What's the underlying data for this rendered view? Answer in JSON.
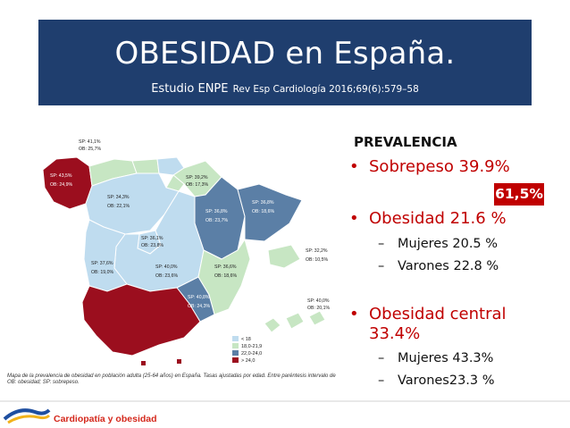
{
  "header": {
    "title": "OBESIDAD en España.",
    "subtitle_main": "Estudio ENPE",
    "subtitle_ref": "Rev Esp Cardiología  2016;69(6):579–58"
  },
  "colors": {
    "header_bg": "#1f3e6e",
    "accent_red": "#c00000",
    "map_light_blue": "#bfdcef",
    "map_steel_blue": "#5b7fa6",
    "map_light_green": "#c7e6c3",
    "map_dark_red": "#9b0e1e"
  },
  "map": {
    "region_labels": [
      {
        "sp": "SP: 41,1%",
        "ob": "OB: 25,7%"
      },
      {
        "sp": "SP: 43,5%",
        "ob": "OB: 24,9%"
      },
      {
        "sp": "SP: 34,3%",
        "ob": "OB: 22,1%"
      },
      {
        "sp": "SP: 39,2%",
        "ob": "OB: 17,3%"
      },
      {
        "sp": "SP: 36,8%",
        "ob": "OB: 23,7%"
      },
      {
        "sp": "SP: 36,8%",
        "ob": "OB: 18,6%"
      },
      {
        "sp": "SP: 36,1%",
        "ob": "OB: 23,8%"
      },
      {
        "sp": "SP: 37,6%",
        "ob": "OB: 19,0%"
      },
      {
        "sp": "SP: 40,0%",
        "ob": "OB: 23,6%"
      },
      {
        "sp": "SP: 36,6%",
        "ob": "OB: 18,6%"
      },
      {
        "sp": "SP: 32,2%",
        "ob": "OB: 10,5%"
      },
      {
        "sp": "SP: 40,8%",
        "ob": "OB: 24,3%"
      },
      {
        "sp": "SP: 40,0%",
        "ob": "OB: 20,1%"
      }
    ],
    "legend": [
      "< 18",
      "18,0-21,9",
      "22,0-24,0",
      "> 24,0"
    ],
    "caption_line1": "Mapa de la prevalencia de obesidad en población adulta (25-64 años) en España. Tasas ajustadas por edad. Entre paréntesis intervalo de",
    "caption_line2": "OB: obesidad; SP: sobrepeso."
  },
  "prevalence": {
    "heading": "PREVALENCIA",
    "badge": "61,5%",
    "items": [
      {
        "bullet": "•",
        "text": "Sobrepeso 39.9%"
      },
      {
        "bullet": "•",
        "text": "Obesidad 21.6 %"
      },
      {
        "bullet": "•",
        "text_line1": "Obesidad central",
        "text_line2": "33.4%"
      }
    ],
    "obesidad_sub": [
      {
        "dash": "–",
        "text": "Mujeres 20.5 %"
      },
      {
        "dash": "–",
        "text": "Varones 22.8 %"
      }
    ],
    "central_sub": [
      {
        "dash": "–",
        "text": "Mujeres 43.3%"
      },
      {
        "dash": "–",
        "text": "Varones23.3 %"
      }
    ]
  },
  "footer": {
    "text": "Cardiopatía y obesidad"
  }
}
